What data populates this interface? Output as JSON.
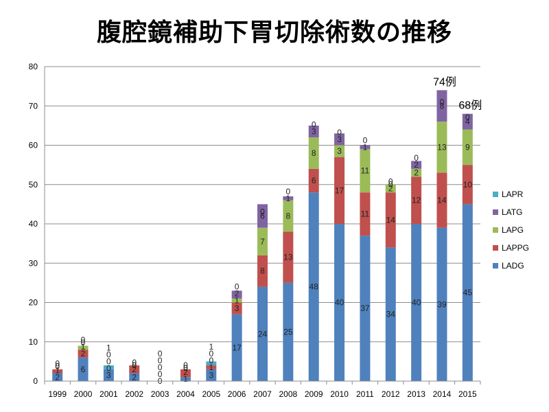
{
  "chart_data": {
    "type": "bar",
    "stacked": true,
    "title": "腹腔鏡補助下胃切除術数の推移",
    "categories": [
      "1999",
      "2000",
      "2001",
      "2002",
      "2003",
      "2004",
      "2005",
      "2006",
      "2007",
      "2008",
      "2009",
      "2010",
      "2011",
      "2012",
      "2013",
      "2014",
      "2015"
    ],
    "ylim": [
      0,
      80
    ],
    "yticks": [
      0,
      10,
      20,
      30,
      40,
      50,
      60,
      70,
      80
    ],
    "grid": true,
    "legend_position": "right",
    "series": [
      {
        "name": "LADG",
        "color": "#4F81BD",
        "values": [
          2,
          6,
          3,
          2,
          0,
          1,
          3,
          17,
          24,
          25,
          48,
          40,
          37,
          34,
          40,
          39,
          45
        ]
      },
      {
        "name": "LAPPG",
        "color": "#C0504D",
        "values": [
          1,
          2,
          0,
          2,
          0,
          2,
          1,
          3,
          8,
          13,
          6,
          17,
          11,
          14,
          12,
          14,
          10
        ]
      },
      {
        "name": "LAPG",
        "color": "#9BBB59",
        "values": [
          0,
          1,
          0,
          0,
          0,
          0,
          0,
          1,
          7,
          8,
          8,
          3,
          11,
          2,
          2,
          13,
          9
        ]
      },
      {
        "name": "LATG",
        "color": "#8064A2",
        "values": [
          0,
          0,
          0,
          0,
          0,
          0,
          0,
          2,
          6,
          1,
          3,
          3,
          1,
          0,
          2,
          8,
          4
        ]
      },
      {
        "name": "LAPR",
        "color": "#4BACC6",
        "values": [
          0,
          0,
          1,
          0,
          0,
          0,
          1,
          0,
          0,
          0,
          0,
          0,
          0,
          0,
          0,
          0,
          0
        ]
      }
    ],
    "legend_order": [
      "LAPR",
      "LATG",
      "LAPG",
      "LAPPG",
      "LADG"
    ],
    "annotations": [
      {
        "category": "2014",
        "text": "74例"
      },
      {
        "category": "2015",
        "text": "68例"
      }
    ]
  }
}
